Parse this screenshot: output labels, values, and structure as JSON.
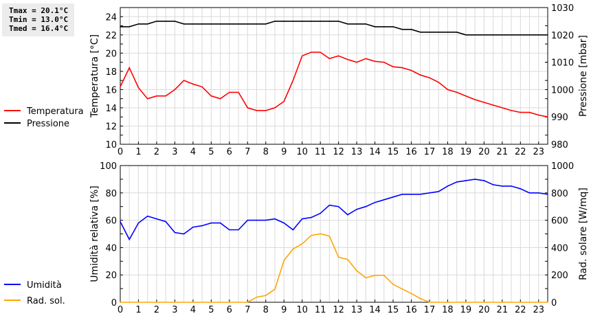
{
  "stats": {
    "tmax": "Tmax = 20.1°C",
    "tmin": "Tmin = 13.0°C",
    "tmed": "Tmed = 16.4°C"
  },
  "chart_data": [
    {
      "type": "line",
      "x": [
        0,
        0.5,
        1,
        1.5,
        2,
        2.5,
        3,
        3.5,
        4,
        4.5,
        5,
        5.5,
        6,
        6.5,
        7,
        7.5,
        8,
        8.5,
        9,
        9.5,
        10,
        10.5,
        11,
        11.5,
        12,
        12.5,
        13,
        13.5,
        14,
        14.5,
        15,
        15.5,
        16,
        16.5,
        17,
        17.5,
        18,
        18.5,
        19,
        19.5,
        20,
        20.5,
        21,
        21.5,
        22,
        22.5,
        23,
        23.5
      ],
      "xticks": [
        "0",
        "1",
        "2",
        "3",
        "4",
        "5",
        "6",
        "7",
        "8",
        "9",
        "10",
        "11",
        "12",
        "13",
        "14",
        "15",
        "16",
        "17",
        "18",
        "19",
        "20",
        "21",
        "22",
        "23"
      ],
      "xlim": [
        0,
        23.5
      ],
      "ylabel": "Temperatura [°C]",
      "ylim": [
        10,
        25
      ],
      "yticks": [
        "10",
        "12",
        "14",
        "16",
        "18",
        "20",
        "22",
        "24"
      ],
      "y2label": "Pressione [mbar]",
      "y2lim": [
        980,
        1030
      ],
      "y2ticks": [
        "980",
        "990",
        "1000",
        "1010",
        "1020",
        "1030"
      ],
      "grid": true,
      "legend_placement": "left",
      "series": [
        {
          "name": "Temperatura",
          "axis": "left",
          "color": "#ff0000",
          "values": [
            16.3,
            18.4,
            16.2,
            15.0,
            15.3,
            15.3,
            16.0,
            17.0,
            16.6,
            16.3,
            15.3,
            15.0,
            15.7,
            15.7,
            14.0,
            13.7,
            13.7,
            14.0,
            14.7,
            17.0,
            19.7,
            20.1,
            20.1,
            19.4,
            19.7,
            19.3,
            19.0,
            19.4,
            19.1,
            19.0,
            18.5,
            18.4,
            18.1,
            17.6,
            17.3,
            16.8,
            16.0,
            15.7,
            15.3,
            14.9,
            14.6,
            14.3,
            14.0,
            13.7,
            13.5,
            13.5,
            13.2,
            13.0
          ]
        },
        {
          "name": "Pressione",
          "axis": "right",
          "color": "#000000",
          "values": [
            1023,
            1023,
            1024,
            1024,
            1025,
            1025,
            1025,
            1024,
            1024,
            1024,
            1024,
            1024,
            1024,
            1024,
            1024,
            1024,
            1024,
            1025,
            1025,
            1025,
            1025,
            1025,
            1025,
            1025,
            1025,
            1024,
            1024,
            1024,
            1023,
            1023,
            1023,
            1022,
            1022,
            1021,
            1021,
            1021,
            1021,
            1021,
            1020,
            1020,
            1020,
            1020,
            1020,
            1020,
            1020,
            1020,
            1020,
            1020
          ]
        }
      ]
    },
    {
      "type": "line",
      "x": [
        0,
        0.5,
        1,
        1.5,
        2,
        2.5,
        3,
        3.5,
        4,
        4.5,
        5,
        5.5,
        6,
        6.5,
        7,
        7.5,
        8,
        8.5,
        9,
        9.5,
        10,
        10.5,
        11,
        11.5,
        12,
        12.5,
        13,
        13.5,
        14,
        14.5,
        15,
        15.5,
        16,
        16.5,
        17,
        17.5,
        18,
        18.5,
        19,
        19.5,
        20,
        20.5,
        21,
        21.5,
        22,
        22.5,
        23,
        23.5
      ],
      "xticks": [
        "0",
        "1",
        "2",
        "3",
        "4",
        "5",
        "6",
        "7",
        "8",
        "9",
        "10",
        "11",
        "12",
        "13",
        "14",
        "15",
        "16",
        "17",
        "18",
        "19",
        "20",
        "21",
        "22",
        "23"
      ],
      "xlim": [
        0,
        23.5
      ],
      "ylabel": "Umidità relativa [%]",
      "ylim": [
        0,
        100
      ],
      "yticks": [
        "0",
        "20",
        "40",
        "60",
        "80",
        "100"
      ],
      "y2label": "Rad. solare [W/mq]",
      "y2lim": [
        0,
        1000
      ],
      "y2ticks": [
        "0",
        "200",
        "400",
        "600",
        "800",
        "1000"
      ],
      "grid": true,
      "legend_placement": "left",
      "series": [
        {
          "name": "Umidità",
          "axis": "left",
          "color": "#0000ff",
          "values": [
            59,
            46,
            58,
            63,
            61,
            59,
            51,
            50,
            55,
            56,
            58,
            58,
            53,
            53,
            60,
            60,
            60,
            61,
            58,
            53,
            61,
            62,
            65,
            71,
            70,
            64,
            68,
            70,
            73,
            75,
            77,
            79,
            79,
            79,
            80,
            81,
            85,
            88,
            89,
            90,
            89,
            86,
            85,
            85,
            83,
            80,
            80,
            79
          ]
        },
        {
          "name": "Rad. sol.",
          "axis": "right",
          "color": "#ffa500",
          "values": [
            0,
            0,
            0,
            0,
            0,
            0,
            0,
            0,
            0,
            0,
            0,
            0,
            0,
            0,
            0,
            37,
            50,
            95,
            305,
            390,
            427,
            489,
            501,
            484,
            330,
            313,
            231,
            179,
            197,
            197,
            131,
            97,
            64,
            27,
            0,
            0,
            0,
            0,
            0,
            0,
            0,
            0,
            0,
            0,
            0,
            0,
            0,
            0
          ]
        }
      ]
    }
  ]
}
